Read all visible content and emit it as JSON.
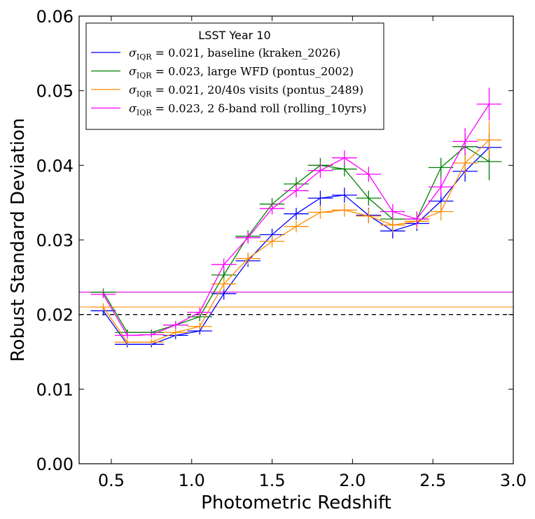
{
  "chart_data": {
    "type": "line",
    "xlabel": "Photometric Redshift",
    "ylabel": "Robust Standard Deviation",
    "xlim": [
      0.3,
      3.0
    ],
    "ylim": [
      0.0,
      0.06
    ],
    "x_ticks": [
      "0.5",
      "1.0",
      "1.5",
      "2.0",
      "2.5",
      "3.0"
    ],
    "x_tick_values": [
      0.5,
      1.0,
      1.5,
      2.0,
      2.5,
      3.0
    ],
    "y_ticks": [
      "0.00",
      "0.01",
      "0.02",
      "0.03",
      "0.04",
      "0.05",
      "0.06"
    ],
    "y_tick_values": [
      0.0,
      0.01,
      0.02,
      0.03,
      0.04,
      0.05,
      0.06
    ],
    "grid": false,
    "legend": {
      "title": "LSST Year 10",
      "position": "top-left"
    },
    "reference_line": {
      "y": 0.02,
      "style": "dashed",
      "color": "#000000"
    },
    "x_bin_halfwidth": 0.155,
    "series": [
      {
        "name": "σ_IQR = 0.021, baseline (kraken_2026)",
        "label_sigma": "0.021",
        "label_rest": ", baseline (kraken_2026)",
        "color": "#0000ff",
        "sigma_iqr": 0.021,
        "x": [
          0.45,
          0.6,
          0.75,
          0.9,
          1.05,
          1.2,
          1.35,
          1.5,
          1.65,
          1.8,
          1.95,
          2.1,
          2.25,
          2.4,
          2.55,
          2.7,
          2.85
        ],
        "y": [
          0.0205,
          0.016,
          0.016,
          0.0172,
          0.0178,
          0.0228,
          0.0272,
          0.0307,
          0.0335,
          0.0356,
          0.036,
          0.0333,
          0.0312,
          0.0322,
          0.0352,
          0.0392,
          0.0424
        ],
        "yerr": [
          0.0006,
          0.0004,
          0.0004,
          0.0005,
          0.0005,
          0.0008,
          0.0008,
          0.0008,
          0.0008,
          0.001,
          0.001,
          0.001,
          0.001,
          0.001,
          0.0012,
          0.0014,
          0.0018
        ]
      },
      {
        "name": "σ_IQR = 0.023, large WFD (pontus_2002)",
        "label_sigma": "0.023",
        "label_rest": ", large WFD (pontus_2002)",
        "color": "#008000",
        "sigma_iqr": 0.023,
        "x": [
          0.45,
          0.6,
          0.75,
          0.9,
          1.05,
          1.2,
          1.35,
          1.5,
          1.65,
          1.8,
          1.95,
          2.1,
          2.25,
          2.4,
          2.55,
          2.7,
          2.85
        ],
        "y": [
          0.023,
          0.0176,
          0.0176,
          0.0186,
          0.0197,
          0.0253,
          0.0305,
          0.0348,
          0.0375,
          0.04,
          0.0395,
          0.0356,
          0.0328,
          0.0328,
          0.0397,
          0.0425,
          0.0405
        ],
        "yerr": [
          0.0005,
          0.0004,
          0.0004,
          0.0005,
          0.0006,
          0.0008,
          0.0008,
          0.0008,
          0.0009,
          0.001,
          0.001,
          0.001,
          0.001,
          0.001,
          0.0013,
          0.0018,
          0.0025
        ]
      },
      {
        "name": "σ_IQR = 0.021, 20/40s visits (pontus_2489)",
        "label_sigma": "0.021",
        "label_rest": ", 20/40s visits (pontus_2489)",
        "color": "#ff8c00",
        "sigma_iqr": 0.021,
        "x": [
          0.45,
          0.6,
          0.75,
          0.9,
          1.05,
          1.2,
          1.35,
          1.5,
          1.65,
          1.8,
          1.95,
          2.1,
          2.25,
          2.4,
          2.55,
          2.7,
          2.85
        ],
        "y": [
          0.021,
          0.0163,
          0.0163,
          0.0176,
          0.0184,
          0.0241,
          0.0275,
          0.0298,
          0.0318,
          0.0337,
          0.034,
          0.0332,
          0.032,
          0.0325,
          0.0338,
          0.0403,
          0.0434
        ],
        "yerr": [
          0.0005,
          0.0004,
          0.0004,
          0.0005,
          0.0005,
          0.0008,
          0.0008,
          0.0008,
          0.0008,
          0.0009,
          0.0009,
          0.001,
          0.001,
          0.001,
          0.0012,
          0.0015,
          0.0025
        ]
      },
      {
        "name": "σ_IQR = 0.023, 2 δ-band roll (rolling_10yrs)",
        "label_sigma": "0.023",
        "label_rest": ", 2 δ-band roll (rolling_10yrs)",
        "color": "#ff00ff",
        "sigma_iqr": 0.023,
        "x": [
          0.45,
          0.6,
          0.75,
          0.9,
          1.05,
          1.2,
          1.35,
          1.5,
          1.65,
          1.8,
          1.95,
          2.1,
          2.25,
          2.4,
          2.55,
          2.7,
          2.85
        ],
        "y": [
          0.0227,
          0.0172,
          0.0173,
          0.0186,
          0.0203,
          0.0267,
          0.0303,
          0.0342,
          0.0366,
          0.0393,
          0.041,
          0.0388,
          0.0338,
          0.0328,
          0.0371,
          0.0432,
          0.0482
        ],
        "yerr": [
          0.0005,
          0.0004,
          0.0004,
          0.0005,
          0.0006,
          0.0008,
          0.0008,
          0.0008,
          0.0009,
          0.001,
          0.001,
          0.001,
          0.001,
          0.001,
          0.0013,
          0.0018,
          0.0022
        ]
      }
    ]
  }
}
